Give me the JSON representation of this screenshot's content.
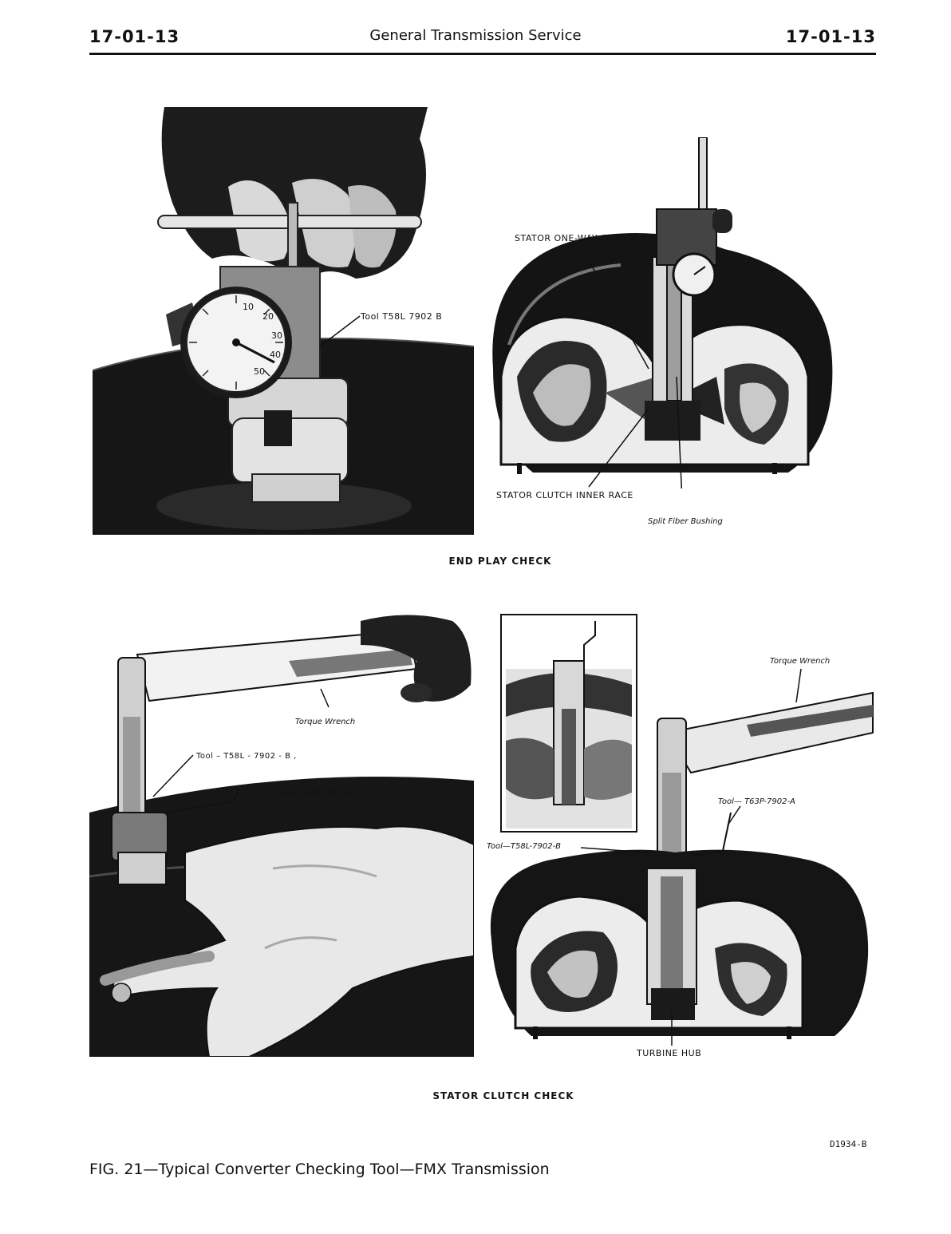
{
  "header": {
    "page_left": "17-01-13",
    "title": "General Transmission Service",
    "page_right": "17-01-13"
  },
  "end_play": {
    "photo_label_tool": "Tool   T58L  7902  B",
    "label_stator_clutch": "STATOR  ONE-WAY  CLUTCH",
    "label_inner_race": "STATOR  CLUTCH  INNER  RACE",
    "label_bushing": "Split  Fiber  Bushing",
    "section_title": "END PLAY CHECK",
    "dial_numbers": [
      "10",
      "20",
      "30",
      "40",
      "50"
    ]
  },
  "stator_check": {
    "label_torque_wrench_left": "Torque  Wrench",
    "label_tool_b": "Tool  – T58L - 7902 - B ,",
    "label_tool_a": "Tool—T63P-7902-A",
    "label_torque_wrench_right": "Torque  Wrench",
    "label_tool_a_right": "Tool— T63P-7902-A",
    "label_tool_b_right": "Tool—T58L-7902-B",
    "label_turbine_hub": "TURBINE  HUB",
    "section_title": "STATOR CLUTCH CHECK"
  },
  "figure": {
    "ref_code": "D1934-B",
    "caption": "FIG. 21—Typical Converter Checking Tool—FMX Transmission"
  }
}
